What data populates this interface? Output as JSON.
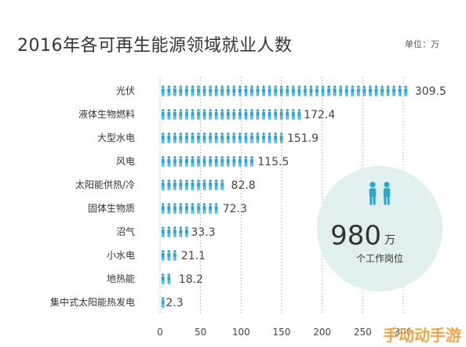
{
  "chart_data": {
    "type": "bar",
    "title": "2016年各可再生能源领域就业人数",
    "unit_label": "单位：万",
    "categories": [
      "光伏",
      "液体生物燃料",
      "大型水电",
      "风电",
      "太阳能供热/冷",
      "固体生物质",
      "沼气",
      "小水电",
      "地热能",
      "集中式太阳能热发电"
    ],
    "values": [
      309.5,
      172.4,
      151.9,
      115.5,
      82.8,
      72.3,
      33.3,
      21.1,
      18.2,
      2.3
    ],
    "value_labels": [
      "309.5",
      "172.4",
      "151.9",
      "115.5",
      "82.8",
      "72.3",
      "33.3",
      "21.1",
      "18.2",
      "2.3"
    ],
    "xticks": [
      "0",
      "50",
      "100",
      "150",
      "200",
      "250",
      "300"
    ],
    "xlim": [
      0,
      300
    ],
    "grid": true,
    "mark_style": "person-icon",
    "colors": {
      "bar": "#2aa6d6",
      "bubble": "#dff0ee",
      "bubble_icon": "#2aa6d6",
      "text": "#333333"
    },
    "callout": {
      "number": "980",
      "unit": "万",
      "label": "个工作岗位"
    }
  },
  "watermark": "手动动手游"
}
